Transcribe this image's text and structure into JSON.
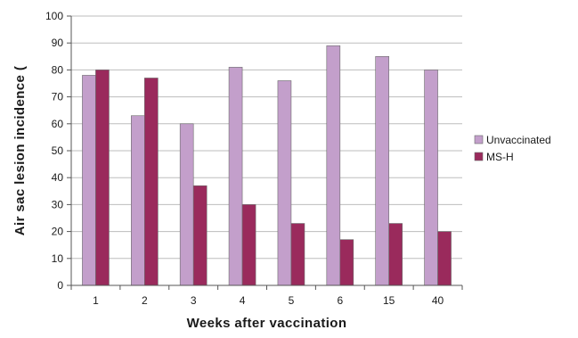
{
  "chart_data": {
    "type": "bar",
    "categories": [
      "1",
      "2",
      "3",
      "4",
      "5",
      "6",
      "15",
      "40"
    ],
    "series": [
      {
        "name": "Unvaccinated",
        "color": "#c39fcb",
        "values": [
          78,
          63,
          60,
          81,
          76,
          89,
          85,
          80
        ]
      },
      {
        "name": "MS-H",
        "color": "#9a2a5c",
        "values": [
          80,
          77,
          37,
          30,
          23,
          17,
          23,
          20
        ]
      }
    ],
    "xlabel": "Weeks after vaccination",
    "ylabel": "Air sac lesion incidence (",
    "ylim": [
      0,
      100
    ],
    "yticks": [
      0,
      10,
      20,
      30,
      40,
      50,
      60,
      70,
      80,
      90,
      100
    ],
    "grid": true,
    "legend_position": "right"
  }
}
